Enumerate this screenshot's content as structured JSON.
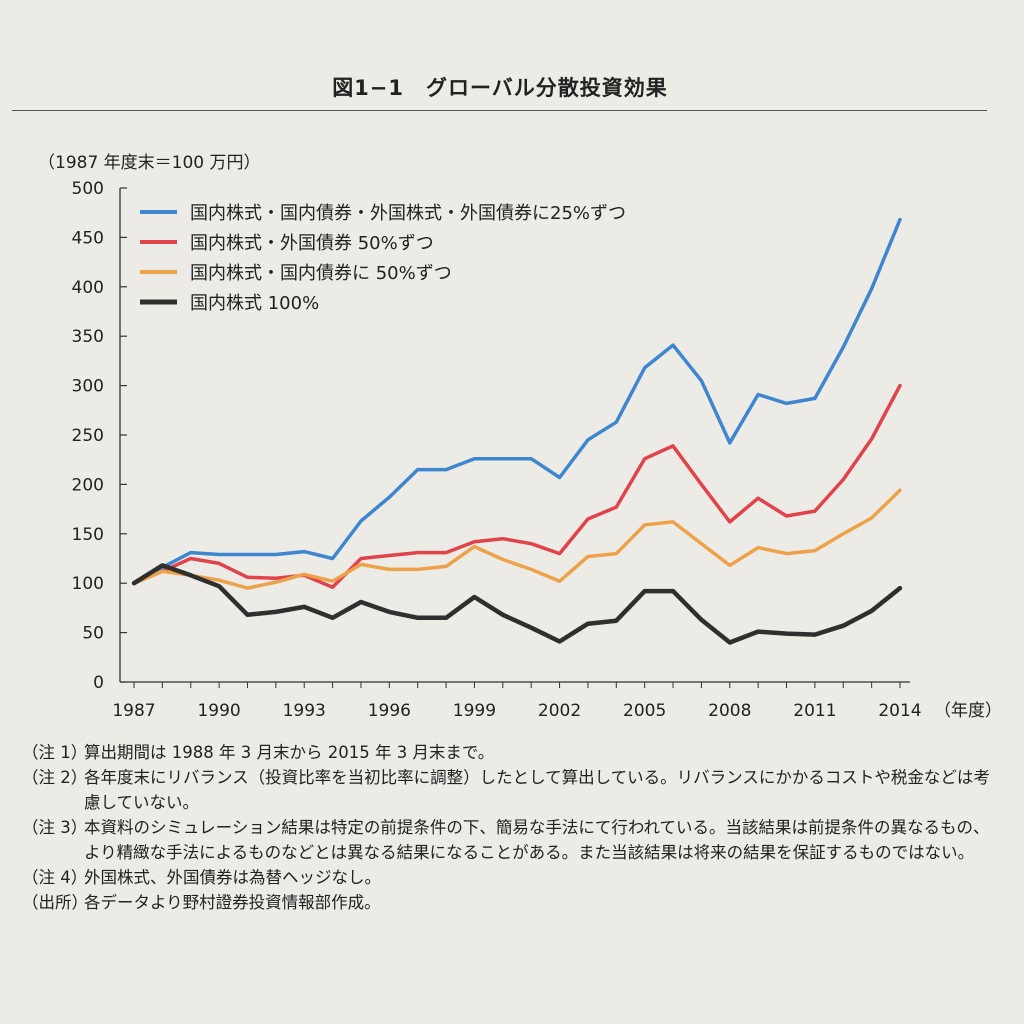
{
  "figure": {
    "title": "図1−1　グローバル分散投資効果",
    "unit": "（1987 年度末＝100 万円）",
    "x_unit": "（年度）"
  },
  "chart_data": {
    "type": "line",
    "title": "図1−1　グローバル分散投資効果",
    "ylabel": "（1987 年度末＝100 万円）",
    "xlabel": "（年度）",
    "ylim": [
      0,
      500
    ],
    "xlim": [
      1987,
      2014
    ],
    "y_ticks": [
      0,
      50,
      100,
      150,
      200,
      250,
      300,
      350,
      400,
      450,
      500
    ],
    "x_ticks": [
      1987,
      1990,
      1993,
      1996,
      1999,
      2002,
      2005,
      2008,
      2011,
      2014
    ],
    "legend_position": "top-left",
    "x": [
      1987,
      1988,
      1989,
      1990,
      1991,
      1992,
      1993,
      1994,
      1995,
      1996,
      1997,
      1998,
      1999,
      2000,
      2001,
      2002,
      2003,
      2004,
      2005,
      2006,
      2007,
      2008,
      2009,
      2010,
      2011,
      2012,
      2013,
      2014
    ],
    "series": [
      {
        "name": "国内株式・国内債券・外国株式・外国債券に25%ずつ",
        "color": "#3f86d1",
        "values": [
          100,
          116,
          131,
          129,
          129,
          129,
          132,
          125,
          163,
          187,
          215,
          215,
          226,
          226,
          226,
          207,
          245,
          263,
          318,
          341,
          305,
          242,
          291,
          282,
          287,
          339,
          398,
          468
        ]
      },
      {
        "name": "国内株式・外国債券 50%ずつ",
        "color": "#e2434a",
        "values": [
          100,
          112,
          125,
          120,
          106,
          105,
          108,
          96,
          125,
          128,
          131,
          131,
          142,
          145,
          140,
          130,
          165,
          177,
          226,
          239,
          200,
          162,
          186,
          168,
          173,
          205,
          246,
          300
        ]
      },
      {
        "name": "国内株式・国内債券に 50%ずつ",
        "color": "#eda24a",
        "values": [
          100,
          112,
          108,
          103,
          95,
          101,
          109,
          102,
          119,
          114,
          114,
          117,
          137,
          124,
          114,
          102,
          127,
          130,
          159,
          162,
          140,
          118,
          136,
          130,
          133,
          150,
          166,
          194
        ]
      },
      {
        "name": "国内株式 100%",
        "color": "#2f2f2f",
        "values": [
          100,
          118,
          108,
          97,
          68,
          71,
          76,
          65,
          81,
          71,
          65,
          65,
          86,
          68,
          55,
          41,
          59,
          62,
          92,
          92,
          63,
          40,
          51,
          49,
          48,
          57,
          72,
          95
        ]
      }
    ]
  },
  "notes": [
    {
      "tag": "（注 1）",
      "text": "算出期間は 1988 年 3 月末から 2015 年 3 月末まで。"
    },
    {
      "tag": "（注 2）",
      "text": "各年度末にリバランス（投資比率を当初比率に調整）したとして算出している。リバランスにかかるコストや税金などは考慮していない。"
    },
    {
      "tag": "（注 3）",
      "text": "本資料のシミュレーション結果は特定の前提条件の下、簡易な手法にて行われている。当該結果は前提条件の異なるもの、より精緻な手法によるものなどとは異なる結果になることがある。また当該結果は将来の結果を保証するものではない。"
    },
    {
      "tag": "（注 4）",
      "text": "外国株式、外国債券は為替ヘッジなし。"
    },
    {
      "tag": "（出所）",
      "text": "各データより野村證券投資情報部作成。"
    }
  ]
}
